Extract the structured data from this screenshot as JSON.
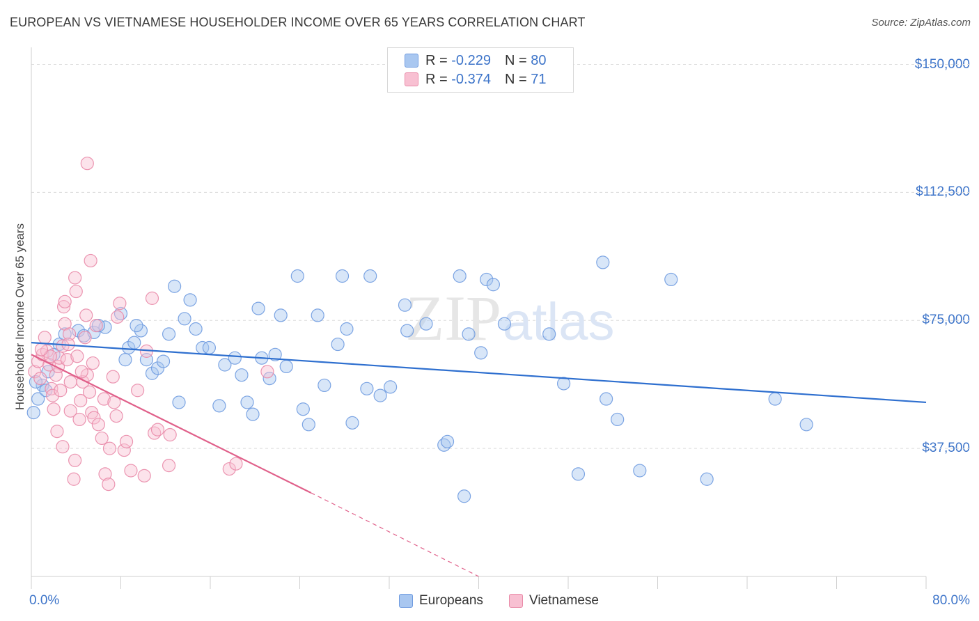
{
  "title": "EUROPEAN VS VIETNAMESE HOUSEHOLDER INCOME OVER 65 YEARS CORRELATION CHART",
  "source": "Source: ZipAtlas.com",
  "watermark": {
    "zip": "ZIP",
    "atlas": "atlas"
  },
  "legend": {
    "rows": [
      {
        "r_label": "R =",
        "r_value": "-0.229",
        "n_label": "N =",
        "n_value": "80",
        "color": "#a9c7f0",
        "border": "#6f9be0"
      },
      {
        "r_label": "R =",
        "r_value": "-0.374",
        "n_label": "N =",
        "n_value": "71",
        "color": "#f8c0d2",
        "border": "#e98aa8"
      }
    ]
  },
  "bottom_legend": [
    {
      "label": "Europeans",
      "color": "#a9c7f0",
      "border": "#6f9be0"
    },
    {
      "label": "Vietnamese",
      "color": "#f8c0d2",
      "border": "#e98aa8"
    }
  ],
  "chart_data": {
    "type": "scatter",
    "title": "EUROPEAN VS VIETNAMESE HOUSEHOLDER INCOME OVER 65 YEARS CORRELATION CHART",
    "xlabel": "",
    "ylabel": "Householder Income Over 65 years",
    "xlim": [
      0,
      80
    ],
    "ylim": [
      0,
      155000
    ],
    "x_tick_labels": [
      "0.0%",
      "80.0%"
    ],
    "y_ticks": [
      37500,
      75000,
      112500,
      150000
    ],
    "y_tick_labels": [
      "$37,500",
      "$75,000",
      "$112,500",
      "$150,000"
    ],
    "grid": "horizontal dashed",
    "series": [
      {
        "name": "Europeans",
        "color": "#6f9be0",
        "fill": "#a9c7f0",
        "trend": {
          "x": [
            0,
            80
          ],
          "y": [
            68500,
            51000
          ],
          "color": "#2e6fcf"
        },
        "points": [
          [
            0.2,
            48000
          ],
          [
            0.6,
            52000
          ],
          [
            1.0,
            56000
          ],
          [
            1.5,
            60000
          ],
          [
            2.5,
            68000
          ],
          [
            3.0,
            71000
          ],
          [
            4.2,
            72000
          ],
          [
            4.7,
            70500
          ],
          [
            5.6,
            71500
          ],
          [
            6.6,
            73000
          ],
          [
            8.0,
            77000
          ],
          [
            8.4,
            63500
          ],
          [
            8.7,
            67000
          ],
          [
            9.2,
            68500
          ],
          [
            9.8,
            72000
          ],
          [
            10.3,
            63500
          ],
          [
            10.8,
            59500
          ],
          [
            11.3,
            61000
          ],
          [
            11.8,
            63000
          ],
          [
            12.3,
            71000
          ],
          [
            12.8,
            85000
          ],
          [
            13.2,
            51000
          ],
          [
            13.7,
            75500
          ],
          [
            14.2,
            81000
          ],
          [
            14.7,
            72500
          ],
          [
            15.3,
            67000
          ],
          [
            15.9,
            67000
          ],
          [
            16.8,
            50000
          ],
          [
            17.3,
            62000
          ],
          [
            18.2,
            64000
          ],
          [
            18.8,
            59000
          ],
          [
            19.3,
            51000
          ],
          [
            19.8,
            47500
          ],
          [
            20.3,
            78500
          ],
          [
            21.3,
            58000
          ],
          [
            21.8,
            65000
          ],
          [
            22.3,
            76500
          ],
          [
            22.8,
            61500
          ],
          [
            23.8,
            88000
          ],
          [
            24.3,
            49000
          ],
          [
            24.8,
            44500
          ],
          [
            25.6,
            76500
          ],
          [
            26.2,
            56000
          ],
          [
            27.4,
            68000
          ],
          [
            27.8,
            88000
          ],
          [
            28.2,
            72500
          ],
          [
            28.7,
            45000
          ],
          [
            30.0,
            55000
          ],
          [
            31.2,
            53000
          ],
          [
            32.1,
            55500
          ],
          [
            30.3,
            88000
          ],
          [
            33.4,
            79500
          ],
          [
            33.6,
            72000
          ],
          [
            35.3,
            74000
          ],
          [
            36.9,
            38500
          ],
          [
            37.2,
            39500
          ],
          [
            38.3,
            88000
          ],
          [
            38.7,
            23500
          ],
          [
            39.1,
            71000
          ],
          [
            40.2,
            65500
          ],
          [
            40.7,
            87000
          ],
          [
            41.3,
            85500
          ],
          [
            42.3,
            74000
          ],
          [
            46.3,
            71000
          ],
          [
            47.6,
            56500
          ],
          [
            48.9,
            30000
          ],
          [
            51.1,
            92000
          ],
          [
            51.4,
            52000
          ],
          [
            52.4,
            46000
          ],
          [
            54.4,
            31000
          ],
          [
            57.2,
            87000
          ],
          [
            60.4,
            28500
          ],
          [
            66.5,
            52000
          ],
          [
            69.3,
            44500
          ],
          [
            20.6,
            64000
          ],
          [
            6.0,
            73500
          ],
          [
            9.4,
            73500
          ],
          [
            2.0,
            65000
          ],
          [
            0.4,
            57000
          ],
          [
            1.3,
            54500
          ]
        ]
      },
      {
        "name": "Vietnamese",
        "color": "#e98aa8",
        "fill": "#f8c0d2",
        "trend": {
          "x": [
            0,
            25
          ],
          "y": [
            65000,
            24500
          ],
          "color": "#e0608a",
          "dashed_to": [
            40,
            0
          ]
        },
        "points": [
          [
            0.3,
            60000
          ],
          [
            0.6,
            63000
          ],
          [
            0.8,
            58000
          ],
          [
            1.0,
            65000
          ],
          [
            1.2,
            70000
          ],
          [
            1.4,
            66000
          ],
          [
            1.6,
            62000
          ],
          [
            1.8,
            55000
          ],
          [
            1.9,
            53000
          ],
          [
            2.0,
            49000
          ],
          [
            2.2,
            59000
          ],
          [
            2.4,
            61500
          ],
          [
            2.5,
            64000
          ],
          [
            2.6,
            54500
          ],
          [
            2.8,
            67500
          ],
          [
            2.8,
            38000
          ],
          [
            2.9,
            79000
          ],
          [
            3.0,
            80500
          ],
          [
            3.0,
            74000
          ],
          [
            3.2,
            63500
          ],
          [
            3.4,
            71000
          ],
          [
            3.5,
            48500
          ],
          [
            3.5,
            57000
          ],
          [
            3.8,
            28500
          ],
          [
            3.9,
            34000
          ],
          [
            3.9,
            87500
          ],
          [
            4.0,
            83500
          ],
          [
            4.1,
            64500
          ],
          [
            4.3,
            46000
          ],
          [
            4.4,
            51500
          ],
          [
            4.6,
            57000
          ],
          [
            4.8,
            70000
          ],
          [
            4.9,
            76500
          ],
          [
            5.0,
            59000
          ],
          [
            5.2,
            54000
          ],
          [
            5.3,
            92500
          ],
          [
            5.4,
            48000
          ],
          [
            5.5,
            62500
          ],
          [
            5.6,
            46500
          ],
          [
            5.8,
            73500
          ],
          [
            6.0,
            44500
          ],
          [
            6.3,
            40500
          ],
          [
            6.5,
            52000
          ],
          [
            6.6,
            30000
          ],
          [
            6.9,
            27000
          ],
          [
            7.0,
            37500
          ],
          [
            7.3,
            58500
          ],
          [
            7.4,
            51000
          ],
          [
            7.6,
            47000
          ],
          [
            7.7,
            76000
          ],
          [
            7.9,
            80000
          ],
          [
            8.3,
            37000
          ],
          [
            8.5,
            39500
          ],
          [
            8.9,
            31000
          ],
          [
            9.5,
            54500
          ],
          [
            10.1,
            29500
          ],
          [
            10.3,
            66000
          ],
          [
            10.8,
            81500
          ],
          [
            11.0,
            42000
          ],
          [
            11.3,
            43000
          ],
          [
            12.3,
            32500
          ],
          [
            12.4,
            41500
          ],
          [
            17.7,
            31500
          ],
          [
            18.3,
            33000
          ],
          [
            21.1,
            60000
          ],
          [
            5.0,
            121000
          ],
          [
            3.3,
            68000
          ],
          [
            1.7,
            64500
          ],
          [
            0.9,
            66500
          ],
          [
            2.3,
            42500
          ],
          [
            4.5,
            60000
          ]
        ]
      }
    ]
  }
}
